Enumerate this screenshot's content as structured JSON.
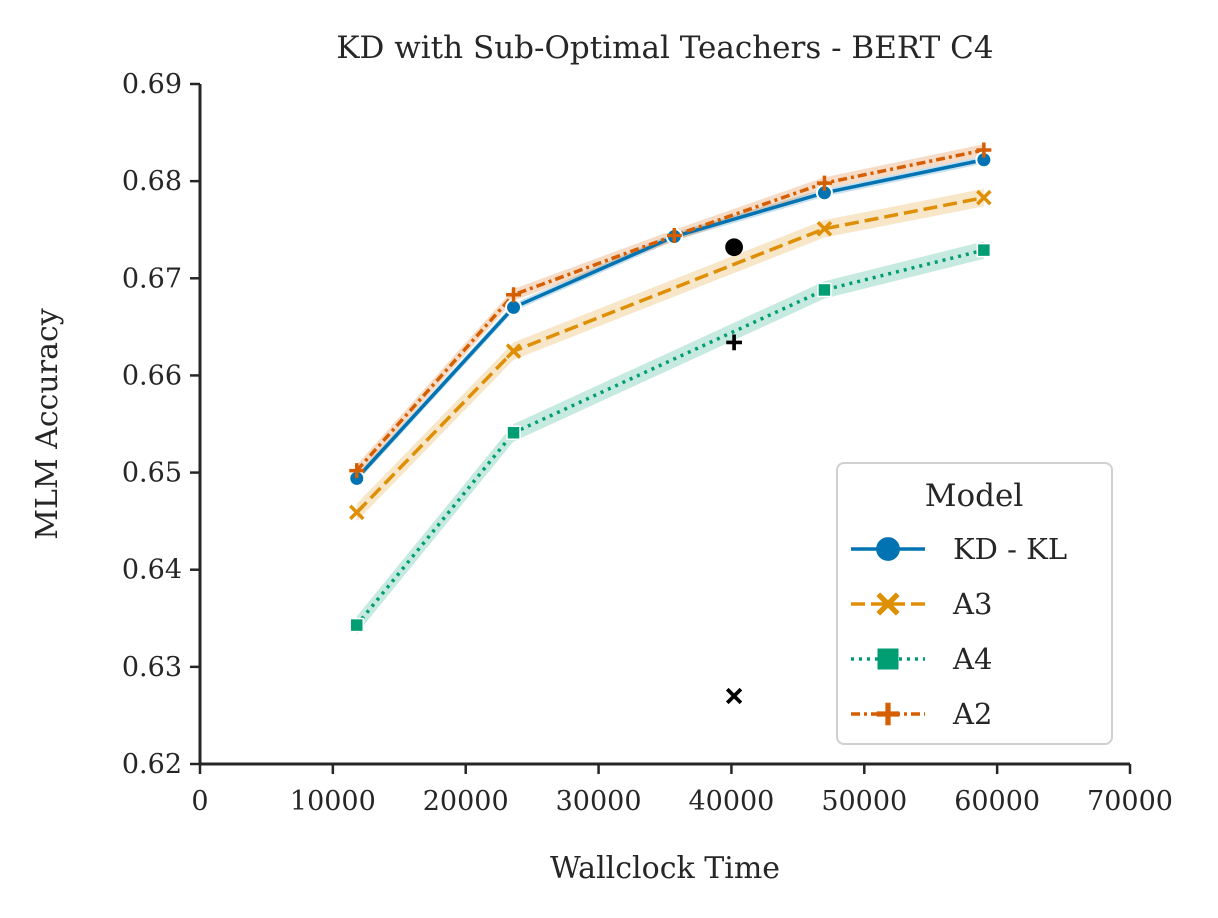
{
  "chart_data": {
    "type": "line",
    "title": "KD with Sub-Optimal Teachers - BERT C4",
    "xlabel": "Wallclock Time",
    "ylabel": "MLM Accuracy",
    "xlim": [
      0,
      70000
    ],
    "ylim": [
      0.62,
      0.69
    ],
    "xticks": [
      0,
      10000,
      20000,
      30000,
      40000,
      50000,
      60000,
      70000
    ],
    "yticks": [
      0.62,
      0.63,
      0.64,
      0.65,
      0.66,
      0.67,
      0.68,
      0.69
    ],
    "xtick_labels": [
      "0",
      "10000",
      "20000",
      "30000",
      "40000",
      "50000",
      "60000",
      "70000"
    ],
    "ytick_labels": [
      "0.62",
      "0.63",
      "0.64",
      "0.65",
      "0.66",
      "0.67",
      "0.68",
      "0.69"
    ],
    "grid": false,
    "legend": {
      "title": "Model",
      "position": "lower-right"
    },
    "series": [
      {
        "name": "KD - KL",
        "color": "#0173b2",
        "dash": "solid",
        "marker": "circle",
        "x": [
          11800,
          23600,
          35700,
          47000,
          59000
        ],
        "y": [
          0.6494,
          0.667,
          0.6743,
          0.6788,
          0.6822
        ],
        "band": 0.0004
      },
      {
        "name": "A3",
        "color": "#de8f05",
        "dash": "dashed",
        "marker": "x",
        "x": [
          11800,
          23600,
          47000,
          59000
        ],
        "y": [
          0.6459,
          0.6625,
          0.6751,
          0.6783
        ],
        "band": 0.0009
      },
      {
        "name": "A4",
        "color": "#029e73",
        "dash": "dotted",
        "marker": "square",
        "x": [
          11800,
          23600,
          47000,
          59000
        ],
        "y": [
          0.6343,
          0.6541,
          0.6688,
          0.6729
        ],
        "band": 0.0009
      },
      {
        "name": "A2",
        "color": "#d55e00",
        "dash": "dashdot",
        "marker": "plus",
        "x": [
          11800,
          23600,
          35700,
          47000,
          59000
        ],
        "y": [
          0.6502,
          0.6683,
          0.6744,
          0.6798,
          0.6832
        ],
        "band": 0.0006
      }
    ],
    "extra_points": [
      {
        "marker": "circle",
        "color": "#000000",
        "x": 40200,
        "y": 0.6732
      },
      {
        "marker": "plus",
        "color": "#000000",
        "x": 40200,
        "y": 0.6634
      },
      {
        "marker": "x",
        "color": "#000000",
        "x": 40200,
        "y": 0.627
      }
    ]
  }
}
